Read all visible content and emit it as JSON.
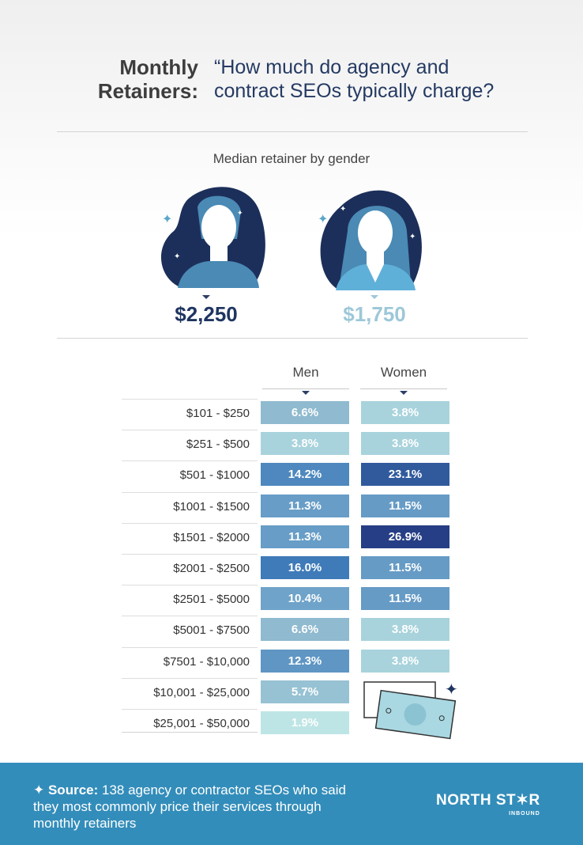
{
  "header": {
    "title_left_1": "Monthly",
    "title_left_2": "Retainers:",
    "title_right_1": "“How much do agency and",
    "title_right_2": "contract SEOs typically charge?"
  },
  "median": {
    "subtitle": "Median retainer by gender",
    "men": "$2,250",
    "women": "$1,750",
    "men_color": "#1f3560",
    "women_color": "#9dc8d8"
  },
  "chart_data": {
    "type": "table",
    "title": "Median retainer by gender",
    "columns": [
      "Men",
      "Women"
    ],
    "categories": [
      "$101 - $250",
      "$251 - $500",
      "$501 - $1000",
      "$1001 - $1500",
      "$1501 - $2000",
      "$2001 - $2500",
      "$2501 - $5000",
      "$5001 - $7500",
      "$7501 - $10,000",
      "$10,001 - $25,000",
      "$25,001 - $50,000"
    ],
    "series": [
      {
        "name": "Men",
        "values": [
          6.6,
          3.8,
          14.2,
          11.3,
          11.3,
          16.0,
          10.4,
          6.6,
          12.3,
          5.7,
          1.9
        ],
        "labels": [
          "6.6%",
          "3.8%",
          "14.2%",
          "11.3%",
          "11.3%",
          "16.0%",
          "10.4%",
          "6.6%",
          "12.3%",
          "5.7%",
          "1.9%"
        ]
      },
      {
        "name": "Women",
        "values": [
          3.8,
          3.8,
          23.1,
          11.5,
          26.9,
          11.5,
          11.5,
          3.8,
          3.8,
          null,
          null
        ],
        "labels": [
          "3.8%",
          "3.8%",
          "23.1%",
          "11.5%",
          "26.9%",
          "11.5%",
          "11.5%",
          "3.8%",
          "3.8%",
          null,
          null
        ]
      }
    ]
  },
  "footer": {
    "source_label": "Source:",
    "source_text": " 138 agency or contractor SEOs who said they most commonly price their services through monthly retainers",
    "logo_main": "NORTH ST✶R",
    "logo_sub": "INBOUND"
  }
}
